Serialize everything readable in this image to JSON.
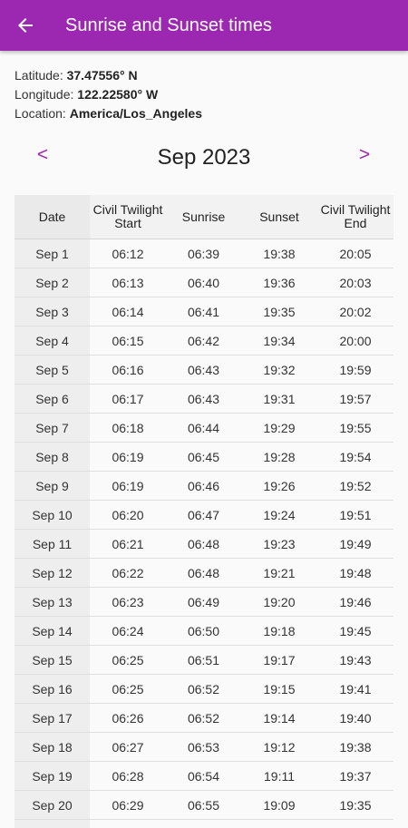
{
  "app_bar": {
    "title": "Sunrise and Sunset times",
    "back_icon": "arrow-back-icon"
  },
  "info": {
    "latitude_label": "Latitude:",
    "latitude_value": "37.47556° N",
    "longitude_label": "Longitude:",
    "longitude_value": "122.22580° W",
    "location_label": "Location:",
    "location_value": "America/Los_Angeles"
  },
  "month_nav": {
    "prev": "<",
    "title": "Sep 2023",
    "next": ">"
  },
  "table": {
    "headers": [
      "Date",
      "Civil Twilight Start",
      "Sunrise",
      "Sunset",
      "Civil Twilight End"
    ],
    "rows": [
      [
        "Sep 1",
        "06:12",
        "06:39",
        "19:38",
        "20:05"
      ],
      [
        "Sep 2",
        "06:13",
        "06:40",
        "19:36",
        "20:03"
      ],
      [
        "Sep 3",
        "06:14",
        "06:41",
        "19:35",
        "20:02"
      ],
      [
        "Sep 4",
        "06:15",
        "06:42",
        "19:34",
        "20:00"
      ],
      [
        "Sep 5",
        "06:16",
        "06:43",
        "19:32",
        "19:59"
      ],
      [
        "Sep 6",
        "06:17",
        "06:43",
        "19:31",
        "19:57"
      ],
      [
        "Sep 7",
        "06:18",
        "06:44",
        "19:29",
        "19:55"
      ],
      [
        "Sep 8",
        "06:19",
        "06:45",
        "19:28",
        "19:54"
      ],
      [
        "Sep 9",
        "06:19",
        "06:46",
        "19:26",
        "19:52"
      ],
      [
        "Sep 10",
        "06:20",
        "06:47",
        "19:24",
        "19:51"
      ],
      [
        "Sep 11",
        "06:21",
        "06:48",
        "19:23",
        "19:49"
      ],
      [
        "Sep 12",
        "06:22",
        "06:48",
        "19:21",
        "19:48"
      ],
      [
        "Sep 13",
        "06:23",
        "06:49",
        "19:20",
        "19:46"
      ],
      [
        "Sep 14",
        "06:24",
        "06:50",
        "19:18",
        "19:45"
      ],
      [
        "Sep 15",
        "06:25",
        "06:51",
        "19:17",
        "19:43"
      ],
      [
        "Sep 16",
        "06:25",
        "06:52",
        "19:15",
        "19:41"
      ],
      [
        "Sep 17",
        "06:26",
        "06:52",
        "19:14",
        "19:40"
      ],
      [
        "Sep 18",
        "06:27",
        "06:53",
        "19:12",
        "19:38"
      ],
      [
        "Sep 19",
        "06:28",
        "06:54",
        "19:11",
        "19:37"
      ],
      [
        "Sep 20",
        "06:29",
        "06:55",
        "19:09",
        "19:35"
      ]
    ]
  },
  "colors": {
    "primary": "#9c27b0",
    "background": "#fafafa"
  }
}
